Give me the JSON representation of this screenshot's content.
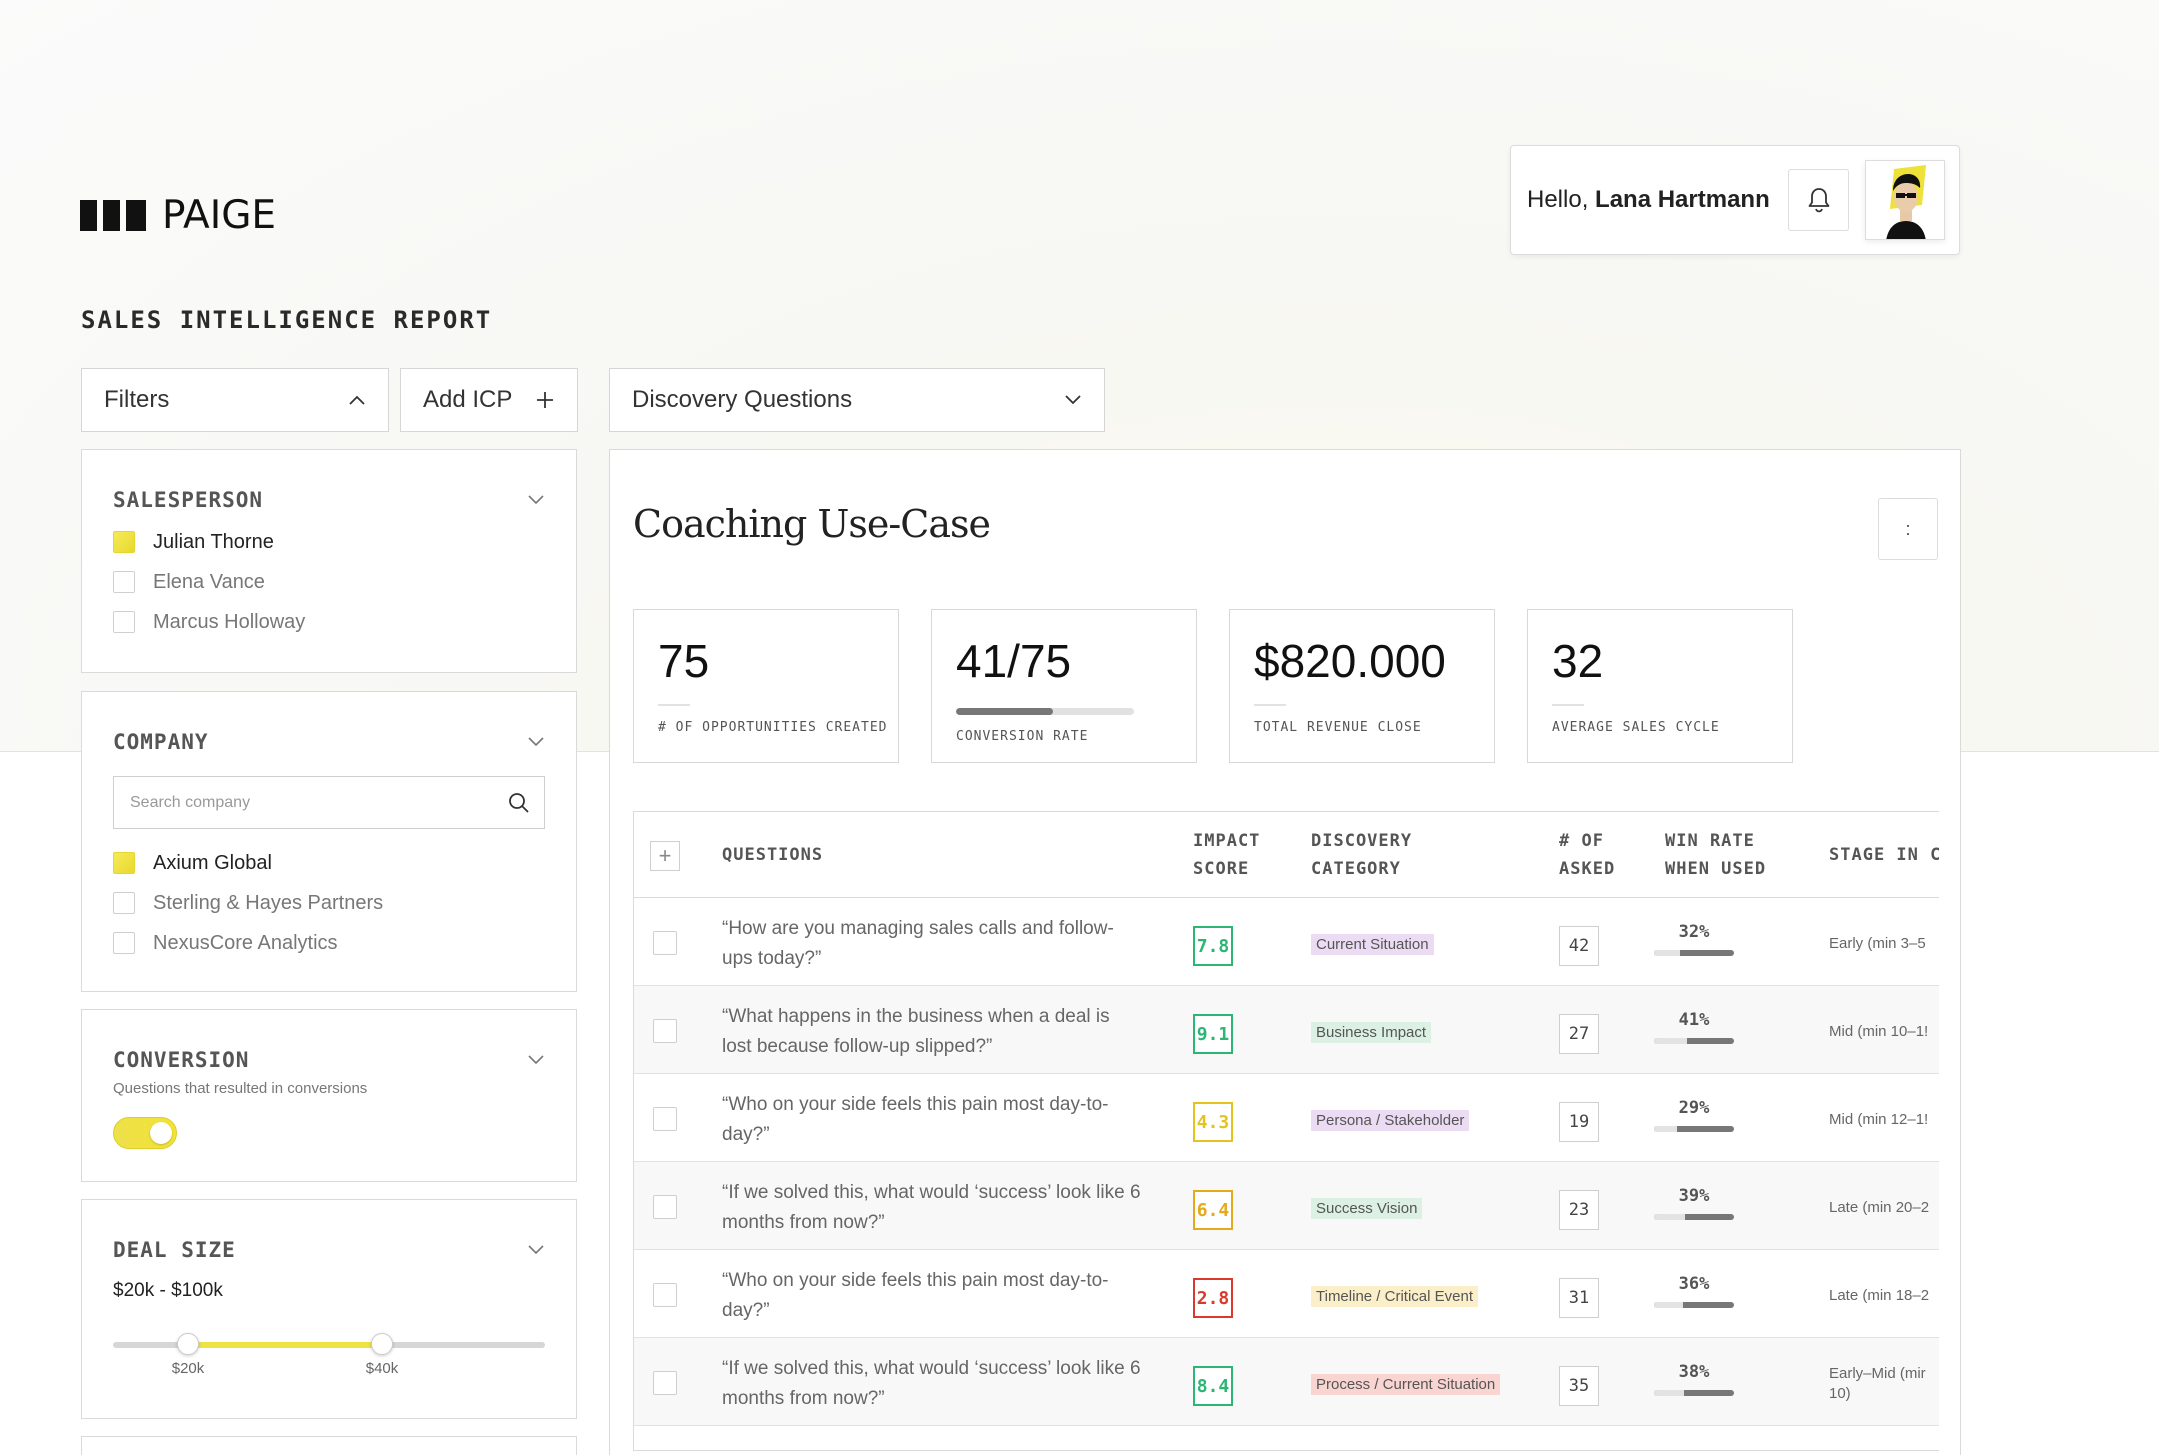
{
  "brand": {
    "name": "PAIGE"
  },
  "user": {
    "greeting": "Hello,",
    "name": "Lana Hartmann"
  },
  "page": {
    "title": "SALES INTELLIGENCE REPORT"
  },
  "toolbar": {
    "filters_label": "Filters",
    "add_icp_label": "Add ICP",
    "view_select": "Discovery Questions"
  },
  "sidebar": {
    "salesperson": {
      "title": "SALESPERSON",
      "items": [
        {
          "label": "Julian Thorne",
          "checked": true
        },
        {
          "label": "Elena Vance",
          "checked": false
        },
        {
          "label": "Marcus Holloway",
          "checked": false
        }
      ]
    },
    "company": {
      "title": "COMPANY",
      "search_placeholder": "Search company",
      "items": [
        {
          "label": "Axium Global",
          "checked": true
        },
        {
          "label": "Sterling & Hayes Partners",
          "checked": false
        },
        {
          "label": "NexusCore Analytics",
          "checked": false
        }
      ]
    },
    "conversion": {
      "title": "CONVERSION",
      "subtitle": "Questions that resulted in conversions",
      "enabled": true
    },
    "deal_size": {
      "title": "DEAL SIZE",
      "range_label": "$20k - $100k",
      "min_label": "$20k",
      "max_label": "$40k"
    }
  },
  "main": {
    "title": "Coaching Use-Case",
    "more_label": ":",
    "kpis": [
      {
        "value": "75",
        "label": "# OF OPPORTUNITIES CREATED"
      },
      {
        "value": "41/75",
        "label": "CONVERSION RATE",
        "progress": 0.547
      },
      {
        "value": "$820.000",
        "label": "TOTAL REVENUE CLOSE"
      },
      {
        "value": "32",
        "label": "AVERAGE SALES CYCLE"
      }
    ],
    "table": {
      "add_label": "+",
      "headers": {
        "questions": "QUESTIONS",
        "impact_1": "IMPACT",
        "impact_2": "SCORE",
        "category_1": "DISCOVERY",
        "category_2": "CATEGORY",
        "asked_1": "# OF",
        "asked_2": "ASKED",
        "win_1": "WIN RATE",
        "win_2": "WHEN USED",
        "stage": "STAGE IN CA"
      },
      "rows": [
        {
          "question": "“How are you managing sales calls and follow-ups today?”",
          "score": "7.8",
          "score_color": "#2bb673",
          "category": "Current Situation",
          "category_bg": "#ecdcf3",
          "asked": "42",
          "win_rate": "32%",
          "win_frac": 0.32,
          "stage": "Early (min 3–5"
        },
        {
          "question": "“What happens in the business when a deal is lost because follow-up slipped?”",
          "score": "9.1",
          "score_color": "#2bb673",
          "category": "Business Impact",
          "category_bg": "#dcf1e4",
          "asked": "27",
          "win_rate": "41%",
          "win_frac": 0.41,
          "stage": "Mid (min 10–1!"
        },
        {
          "question": "“Who on your side feels this pain most day-to-day?”",
          "score": "4.3",
          "score_color": "#e5c21c",
          "category": "Persona / Stakeholder",
          "category_bg": "#ecdcf3",
          "asked": "19",
          "win_rate": "29%",
          "win_frac": 0.29,
          "stage": "Mid (min 12–1!"
        },
        {
          "question": "“If we solved this, what would ‘success’ look like 6 months from now?”",
          "score": "6.4",
          "score_color": "#e5a91c",
          "category": "Success Vision",
          "category_bg": "#dcf1e4",
          "asked": "23",
          "win_rate": "39%",
          "win_frac": 0.39,
          "stage": "Late (min 20–2"
        },
        {
          "question": "“Who on your side feels this pain most day-to-day?”",
          "score": "2.8",
          "score_color": "#d93a2b",
          "category": "Timeline / Critical Event",
          "category_bg": "#fbefc9",
          "asked": "31",
          "win_rate": "36%",
          "win_frac": 0.36,
          "stage": "Late (min 18–2"
        },
        {
          "question": "“If we solved this, what would ‘success’ look like 6 months from now?”",
          "score": "8.4",
          "score_color": "#2bb673",
          "category": "Process / Current Situation",
          "category_bg": "#f9d5d2",
          "asked": "35",
          "win_rate": "38%",
          "win_frac": 0.38,
          "stage": "Early–Mid (mir",
          "stage_2": "10)"
        }
      ]
    }
  }
}
